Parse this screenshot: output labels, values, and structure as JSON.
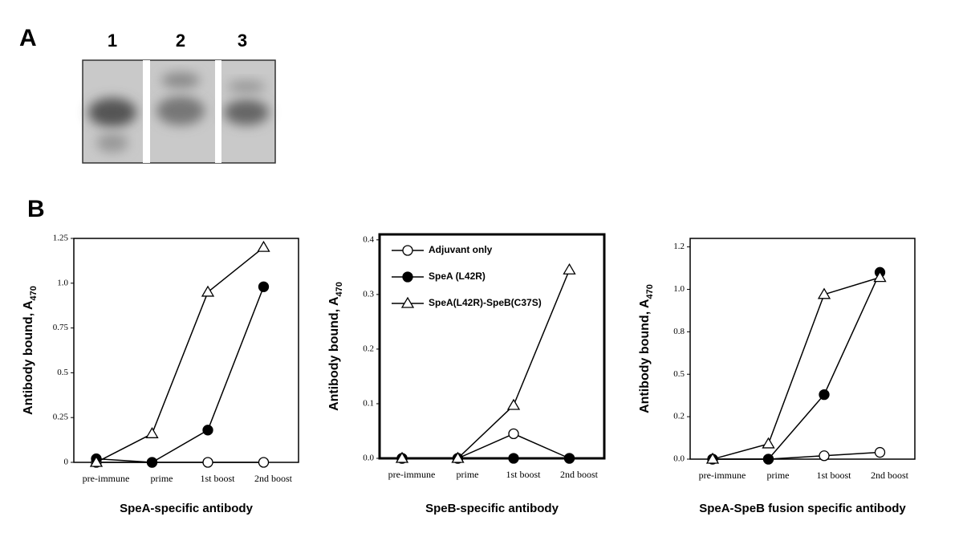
{
  "figure": {
    "panel_labels": [
      "A",
      "B"
    ],
    "lanes": [
      "1",
      "2",
      "3"
    ]
  },
  "chart_data": [
    {
      "type": "line",
      "title": "SpeA-specific antibody",
      "ylabel": {
        "text": "Antibody bound, A",
        "subscript": "470"
      },
      "categories": [
        "pre-immune",
        "prime",
        "1st boost",
        "2nd boost"
      ],
      "ylim": [
        0,
        1.25
      ],
      "yticks": [
        0,
        0.25,
        0.5,
        0.75,
        {
          "value": 1,
          "label": "1.0"
        },
        1.25
      ],
      "series": [
        {
          "marker": "open-circle",
          "color": "#000000",
          "values": [
            0,
            0,
            0,
            0
          ]
        },
        {
          "marker": "filled-circle",
          "color": "#000000",
          "values": [
            0.02,
            0,
            0.18,
            0.98
          ]
        },
        {
          "marker": "open-triangle",
          "color": "#000000",
          "values": [
            0,
            0.16,
            0.95,
            1.2
          ]
        }
      ]
    },
    {
      "type": "line",
      "title": "SpeB-specific antibody",
      "ylabel": {
        "text": "Antibody bound, A",
        "subscript": "470"
      },
      "categories": [
        "pre-immune",
        "prime",
        "1st boost",
        "2nd boost"
      ],
      "ylim": [
        0,
        0.41
      ],
      "yticks": [
        {
          "value": 0,
          "label": "0.0"
        },
        0.1,
        0.2,
        0.3,
        0.4
      ],
      "legend": "upper left",
      "series": [
        {
          "name": "Adjuvant only",
          "marker": "open-circle",
          "color": "#000000",
          "values": [
            0,
            0,
            0.045,
            0
          ]
        },
        {
          "name": "SpeA (L42R)",
          "marker": "filled-circle",
          "color": "#000000",
          "values": [
            0,
            0,
            0,
            0
          ]
        },
        {
          "name": "SpeA(L42R)-SpeB(C37S)",
          "marker": "open-triangle",
          "color": "#000000",
          "values": [
            0,
            0,
            0.097,
            0.345
          ]
        }
      ]
    },
    {
      "type": "line",
      "title": "SpeA-SpeB fusion specific antibody",
      "ylabel": {
        "text": "Antibody bound, A",
        "subscript": "470"
      },
      "categories": [
        "pre-immune",
        "prime",
        "1st boost",
        "2nd boost"
      ],
      "ylim": [
        0,
        1.3
      ],
      "yticks": [
        {
          "value": 0,
          "label": "0.0"
        },
        {
          "value": 0.25,
          "label": "0.2"
        },
        0.5,
        {
          "value": 0.75,
          "label": "0.8"
        },
        {
          "value": 1,
          "label": "1.0"
        },
        {
          "value": 1.25,
          "label": "1.2"
        }
      ],
      "series": [
        {
          "marker": "open-circle",
          "color": "#000000",
          "values": [
            0,
            0,
            0.02,
            0.04
          ]
        },
        {
          "marker": "filled-circle",
          "color": "#000000",
          "values": [
            0,
            0,
            0.38,
            1.1
          ]
        },
        {
          "marker": "open-triangle",
          "color": "#000000",
          "values": [
            0,
            0.09,
            0.97,
            1.07
          ]
        }
      ]
    }
  ]
}
